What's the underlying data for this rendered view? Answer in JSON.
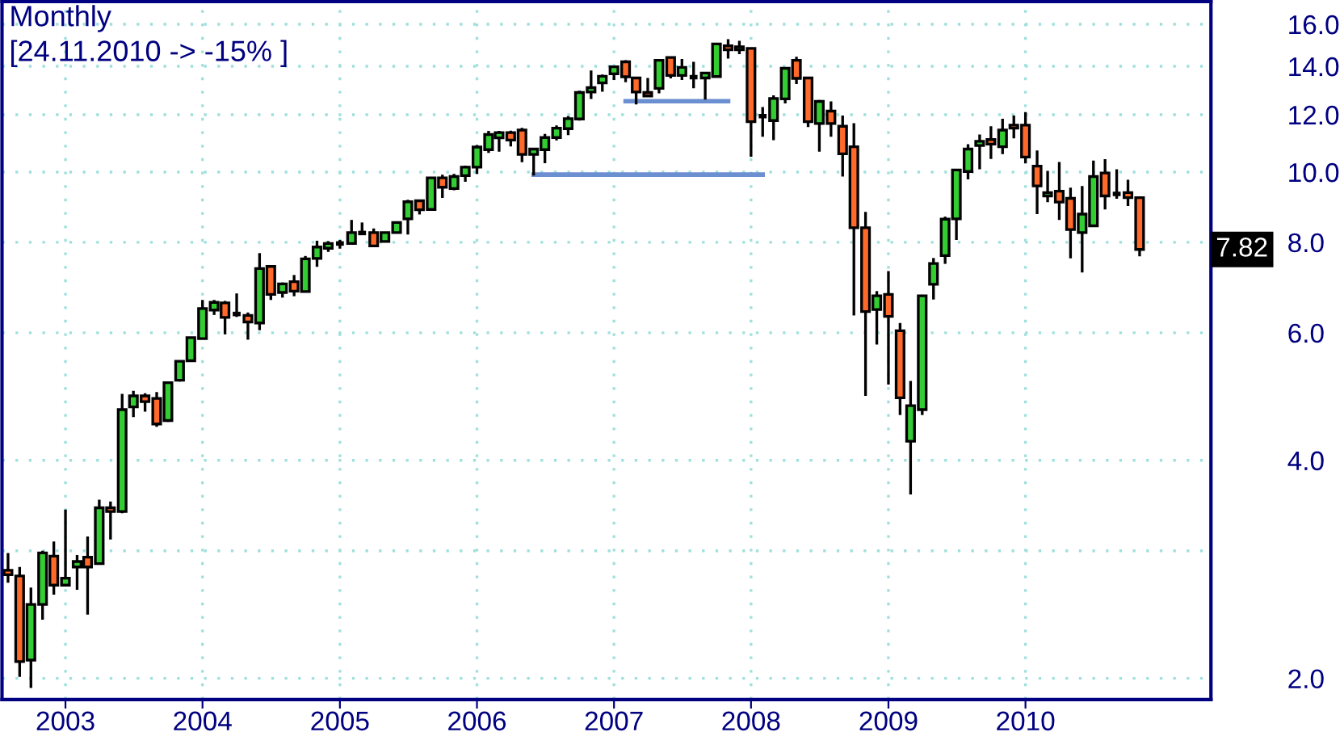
{
  "chart_data": {
    "type": "candlestick",
    "title": "Monthly",
    "subtitle": "[24.11.2010 -> -15% ]",
    "x": [
      "2002-08",
      "2002-09",
      "2002-10",
      "2002-11",
      "2002-12",
      "2003-01",
      "2003-02",
      "2003-03",
      "2003-04",
      "2003-05",
      "2003-06",
      "2003-07",
      "2003-08",
      "2003-09",
      "2003-10",
      "2003-11",
      "2003-12",
      "2004-01",
      "2004-02",
      "2004-03",
      "2004-04",
      "2004-05",
      "2004-06",
      "2004-07",
      "2004-08",
      "2004-09",
      "2004-10",
      "2004-11",
      "2004-12",
      "2005-01",
      "2005-02",
      "2005-03",
      "2005-04",
      "2005-05",
      "2005-06",
      "2005-07",
      "2005-08",
      "2005-09",
      "2005-10",
      "2005-11",
      "2005-12",
      "2006-01",
      "2006-02",
      "2006-03",
      "2006-04",
      "2006-05",
      "2006-06",
      "2006-07",
      "2006-08",
      "2006-09",
      "2006-10",
      "2006-11",
      "2006-12",
      "2007-01",
      "2007-02",
      "2007-03",
      "2007-04",
      "2007-05",
      "2007-06",
      "2007-07",
      "2007-08",
      "2007-09",
      "2007-10",
      "2007-11",
      "2007-12",
      "2008-01",
      "2008-02",
      "2008-03",
      "2008-04",
      "2008-05",
      "2008-06",
      "2008-07",
      "2008-08",
      "2008-09",
      "2008-10",
      "2008-11",
      "2008-12",
      "2009-01",
      "2009-02",
      "2009-03",
      "2009-04",
      "2009-05",
      "2009-06",
      "2009-07",
      "2009-08",
      "2009-09",
      "2009-10",
      "2009-11",
      "2009-12",
      "2010-01",
      "2010-02",
      "2010-03",
      "2010-04",
      "2010-05",
      "2010-06",
      "2010-07",
      "2010-08",
      "2010-09",
      "2010-10",
      "2010-11"
    ],
    "ohlc": [
      [
        2.82,
        2.98,
        2.71,
        2.78
      ],
      [
        2.77,
        2.85,
        2.01,
        2.11
      ],
      [
        2.12,
        2.67,
        1.94,
        2.53
      ],
      [
        2.53,
        3.0,
        2.41,
        2.98
      ],
      [
        2.95,
        3.09,
        2.61,
        2.69
      ],
      [
        2.69,
        3.42,
        2.69,
        2.75
      ],
      [
        2.85,
        2.96,
        2.65,
        2.9
      ],
      [
        2.94,
        3.14,
        2.45,
        2.85
      ],
      [
        2.88,
        3.53,
        2.88,
        3.44
      ],
      [
        3.44,
        3.51,
        3.11,
        3.4
      ],
      [
        3.4,
        4.94,
        3.38,
        4.7
      ],
      [
        4.74,
        4.99,
        4.59,
        4.91
      ],
      [
        4.91,
        4.95,
        4.67,
        4.82
      ],
      [
        4.87,
        4.97,
        4.45,
        4.49
      ],
      [
        4.54,
        5.12,
        4.52,
        5.12
      ],
      [
        5.16,
        5.49,
        5.14,
        5.48
      ],
      [
        5.49,
        5.91,
        5.49,
        5.91
      ],
      [
        5.89,
        6.66,
        5.89,
        6.48
      ],
      [
        6.45,
        6.66,
        6.35,
        6.61
      ],
      [
        6.6,
        6.64,
        5.97,
        6.3
      ],
      [
        6.37,
        6.8,
        6.31,
        6.37
      ],
      [
        6.34,
        6.4,
        5.87,
        6.21
      ],
      [
        6.19,
        7.73,
        6.05,
        7.36
      ],
      [
        7.41,
        7.44,
        6.66,
        6.78
      ],
      [
        6.82,
        7.04,
        6.71,
        7.01
      ],
      [
        7.06,
        7.21,
        6.74,
        6.85
      ],
      [
        6.84,
        7.66,
        6.84,
        7.59
      ],
      [
        7.6,
        8.04,
        7.4,
        7.88
      ],
      [
        7.85,
        8.03,
        7.76,
        7.97
      ],
      [
        7.97,
        8.06,
        7.84,
        7.97
      ],
      [
        7.97,
        8.59,
        7.97,
        8.25
      ],
      [
        8.24,
        8.52,
        8.2,
        8.24
      ],
      [
        8.25,
        8.36,
        7.88,
        7.91
      ],
      [
        8.02,
        8.25,
        8.02,
        8.25
      ],
      [
        8.25,
        8.52,
        8.25,
        8.52
      ],
      [
        8.62,
        9.16,
        8.2,
        9.1
      ],
      [
        9.13,
        9.13,
        8.74,
        8.87
      ],
      [
        8.88,
        9.82,
        8.88,
        9.82
      ],
      [
        9.82,
        9.92,
        9.21,
        9.53
      ],
      [
        9.49,
        9.94,
        9.44,
        9.86
      ],
      [
        9.89,
        10.21,
        9.7,
        10.16
      ],
      [
        10.16,
        10.9,
        9.94,
        10.83
      ],
      [
        10.74,
        11.4,
        10.63,
        11.27
      ],
      [
        11.15,
        11.4,
        10.67,
        11.34
      ],
      [
        11.34,
        11.41,
        10.85,
        11.07
      ],
      [
        11.43,
        11.51,
        10.32,
        10.58
      ],
      [
        10.58,
        10.76,
        9.89,
        10.76
      ],
      [
        10.74,
        11.29,
        10.29,
        11.16
      ],
      [
        11.16,
        11.6,
        11.06,
        11.5
      ],
      [
        11.48,
        11.95,
        11.25,
        11.85
      ],
      [
        11.84,
        12.95,
        11.78,
        12.88
      ],
      [
        12.9,
        13.81,
        12.62,
        13.08
      ],
      [
        13.28,
        13.64,
        12.91,
        13.56
      ],
      [
        13.67,
        13.98,
        13.4,
        13.98
      ],
      [
        14.2,
        14.27,
        13.31,
        13.54
      ],
      [
        13.49,
        13.49,
        12.4,
        12.9
      ],
      [
        12.88,
        13.49,
        12.74,
        12.74
      ],
      [
        13.05,
        14.27,
        12.85,
        14.27
      ],
      [
        14.4,
        14.4,
        13.47,
        13.6
      ],
      [
        13.6,
        14.33,
        13.4,
        13.95
      ],
      [
        13.52,
        14.2,
        13.05,
        13.52
      ],
      [
        13.49,
        13.7,
        12.59,
        13.7
      ],
      [
        13.55,
        15.03,
        13.55,
        15.03
      ],
      [
        14.94,
        15.26,
        14.35,
        14.75
      ],
      [
        14.75,
        15.18,
        14.55,
        14.89
      ],
      [
        14.82,
        14.82,
        10.5,
        11.74
      ],
      [
        11.95,
        12.3,
        11.19,
        11.95
      ],
      [
        11.78,
        12.76,
        11.07,
        12.64
      ],
      [
        12.62,
        13.91,
        12.44,
        13.91
      ],
      [
        14.27,
        14.43,
        13.23,
        13.47
      ],
      [
        13.49,
        13.49,
        11.54,
        11.74
      ],
      [
        11.67,
        12.58,
        10.67,
        12.52
      ],
      [
        12.14,
        12.52,
        11.19,
        11.67
      ],
      [
        11.57,
        11.97,
        9.86,
        10.6
      ],
      [
        10.84,
        11.68,
        6.34,
        8.38
      ],
      [
        8.38,
        8.81,
        4.91,
        6.42
      ],
      [
        6.46,
        6.85,
        5.78,
        6.75
      ],
      [
        6.78,
        7.3,
        5.09,
        6.32
      ],
      [
        6.04,
        6.19,
        4.62,
        4.88
      ],
      [
        4.25,
        5.15,
        3.59,
        4.76
      ],
      [
        4.7,
        6.77,
        4.62,
        6.75
      ],
      [
        7.0,
        7.61,
        6.67,
        7.48
      ],
      [
        7.67,
        8.68,
        7.47,
        8.61
      ],
      [
        8.62,
        10.07,
        8.06,
        10.07
      ],
      [
        10.02,
        10.93,
        9.77,
        10.76
      ],
      [
        10.88,
        11.27,
        10.09,
        11.03
      ],
      [
        11.09,
        11.57,
        10.43,
        10.93
      ],
      [
        10.84,
        11.85,
        10.59,
        11.43
      ],
      [
        11.61,
        11.97,
        11.13,
        11.5
      ],
      [
        11.61,
        12.1,
        10.28,
        10.49
      ],
      [
        10.19,
        10.71,
        8.75,
        9.57
      ],
      [
        9.27,
        10.04,
        9.09,
        9.37
      ],
      [
        9.41,
        10.33,
        8.59,
        9.09
      ],
      [
        9.2,
        9.52,
        7.6,
        8.33
      ],
      [
        8.25,
        9.57,
        7.27,
        8.75
      ],
      [
        8.43,
        10.37,
        8.41,
        9.86
      ],
      [
        9.97,
        10.42,
        8.88,
        9.27
      ],
      [
        9.33,
        10.09,
        9.19,
        9.33
      ],
      [
        9.37,
        9.76,
        8.98,
        9.22
      ],
      [
        9.22,
        9.22,
        7.65,
        7.82
      ]
    ],
    "colors": [
      "#ff6a2a",
      "#ff6a2a",
      "#33cc33",
      "#33cc33",
      "#ff6a2a",
      "#33cc33",
      "#33cc33",
      "#ff6a2a",
      "#33cc33",
      "#ff6a2a",
      "#33cc33",
      "#33cc33",
      "#ff6a2a",
      "#ff6a2a",
      "#33cc33",
      "#33cc33",
      "#33cc33",
      "#33cc33",
      "#33cc33",
      "#ff6a2a",
      "#000000",
      "#ff6a2a",
      "#33cc33",
      "#ff6a2a",
      "#33cc33",
      "#ff6a2a",
      "#33cc33",
      "#33cc33",
      "#33cc33",
      "#000000",
      "#33cc33",
      "#000000",
      "#ff6a2a",
      "#33cc33",
      "#33cc33",
      "#33cc33",
      "#ff6a2a",
      "#33cc33",
      "#ff6a2a",
      "#33cc33",
      "#33cc33",
      "#33cc33",
      "#33cc33",
      "#33cc33",
      "#ff6a2a",
      "#ff6a2a",
      "#33cc33",
      "#33cc33",
      "#33cc33",
      "#33cc33",
      "#33cc33",
      "#33cc33",
      "#33cc33",
      "#33cc33",
      "#ff6a2a",
      "#ff6a2a",
      "#ff6a2a",
      "#33cc33",
      "#ff6a2a",
      "#33cc33",
      "#000000",
      "#33cc33",
      "#33cc33",
      "#ff6a2a",
      "#33cc33",
      "#ff6a2a",
      "#000000",
      "#33cc33",
      "#33cc33",
      "#ff6a2a",
      "#ff6a2a",
      "#33cc33",
      "#ff6a2a",
      "#ff6a2a",
      "#ff6a2a",
      "#ff6a2a",
      "#33cc33",
      "#ff6a2a",
      "#ff6a2a",
      "#33cc33",
      "#33cc33",
      "#33cc33",
      "#33cc33",
      "#33cc33",
      "#33cc33",
      "#33cc33",
      "#ff6a2a",
      "#33cc33",
      "#ff6a2a",
      "#ff6a2a",
      "#ff6a2a",
      "#33cc33",
      "#ff6a2a",
      "#ff6a2a",
      "#33cc33",
      "#33cc33",
      "#ff6a2a",
      "#000000",
      "#ff6a2a",
      "#ff6a2a"
    ],
    "series": [
      {
        "type": "line",
        "x": [
          "2007-02",
          "2007-11"
        ],
        "values": [
          12.53,
          12.53
        ],
        "color": "#6b8fd0"
      },
      {
        "type": "line",
        "x": [
          "2006-06",
          "2008-02"
        ],
        "values": [
          9.92,
          9.92
        ],
        "color": "#6b8fd0"
      }
    ],
    "annotations": [
      "7.82"
    ],
    "log": "y",
    "xlim": [
      "2002-07-16",
      "2011-05-10"
    ],
    "xticks": [
      "2003",
      "2004",
      "2005",
      "2006",
      "2007",
      "2008",
      "2009",
      "2010"
    ],
    "ylim": [
      1.87,
      17.2
    ],
    "yticks": [
      {
        "value": 2,
        "label": "2.0"
      },
      {
        "value": 3,
        "label": null
      },
      {
        "value": 4,
        "label": "4.0"
      },
      {
        "value": 6,
        "label": "6.0"
      },
      {
        "value": 8,
        "label": "8.0"
      },
      {
        "value": 10,
        "label": "10.0"
      },
      {
        "value": 12,
        "label": "12.0"
      },
      {
        "value": 14,
        "label": "14.0"
      },
      {
        "value": 16,
        "label": "16.0"
      }
    ],
    "grid": true,
    "legend": false
  }
}
